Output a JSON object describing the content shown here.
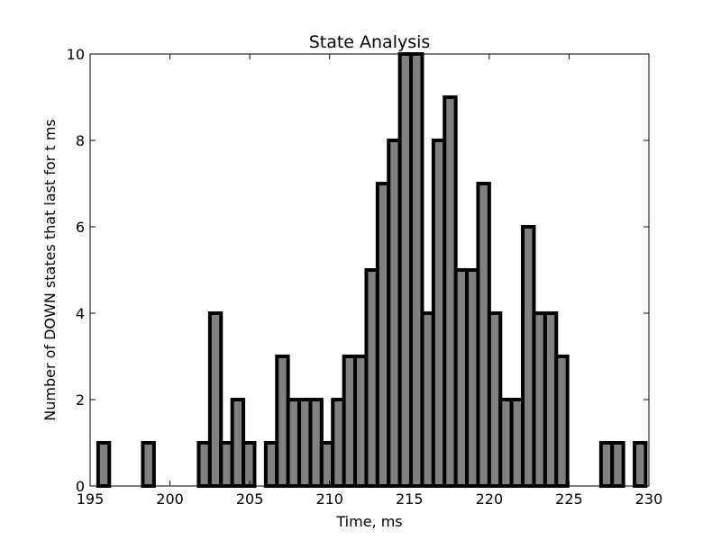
{
  "chart_data": {
    "type": "bar",
    "title": "State Analysis",
    "xlabel": "Time, ms",
    "ylabel": "Number of DOWN states that last for t ms",
    "xlim": [
      195,
      230
    ],
    "ylim": [
      0,
      10
    ],
    "xticks": [
      195,
      200,
      205,
      210,
      215,
      220,
      225,
      230
    ],
    "yticks": [
      0,
      2,
      4,
      6,
      8,
      10
    ],
    "grid": false,
    "bin_start": 195.5,
    "bin_width": 0.7,
    "values": [
      1,
      0,
      0,
      0,
      1,
      0,
      0,
      0,
      0,
      1,
      4,
      1,
      2,
      1,
      0,
      1,
      3,
      2,
      2,
      2,
      1,
      2,
      3,
      3,
      5,
      7,
      8,
      10,
      10,
      4,
      8,
      9,
      5,
      5,
      7,
      4,
      2,
      2,
      6,
      4,
      4,
      3,
      0,
      0,
      0,
      1,
      1,
      0,
      1
    ],
    "bar_color": "#808080",
    "edge_color": "#000000"
  }
}
